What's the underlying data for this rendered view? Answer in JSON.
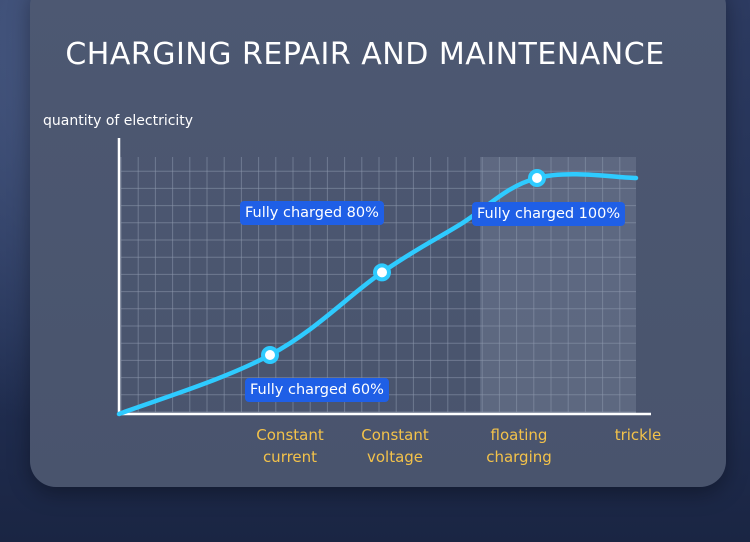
{
  "title": "CHARGING REPAIR AND MAINTENANCE",
  "colors": {
    "curve": "#2ecbff",
    "badge": "#1f5fe6",
    "category_text": "#f3c24a",
    "grid": "#8d98ad",
    "axis": "#ffffff",
    "highlight_band": "#6d7890"
  },
  "chart_data": {
    "type": "line",
    "title": "CHARGING REPAIR AND MAINTENANCE",
    "ylabel": "quantity of electricity",
    "xlabel": "",
    "categories": [
      "Constant\ncurrent",
      "Constant\nvoltage",
      "floating\ncharging",
      "trickle"
    ],
    "series": [
      {
        "x": [
          0,
          1,
          2,
          3,
          4,
          5
        ],
        "y": [
          0,
          25,
          60,
          80,
          100,
          100
        ]
      }
    ],
    "annotations": [
      {
        "label": "Fully charged 60%",
        "x": 1,
        "y": 25
      },
      {
        "label": "Fully charged 80%",
        "x": 2,
        "y": 60
      },
      {
        "label": "Fully charged 100%",
        "x": 4,
        "y": 100
      }
    ],
    "ylim": [
      0,
      100
    ],
    "grid": true,
    "highlighted_region": "floating charging to trickle"
  }
}
